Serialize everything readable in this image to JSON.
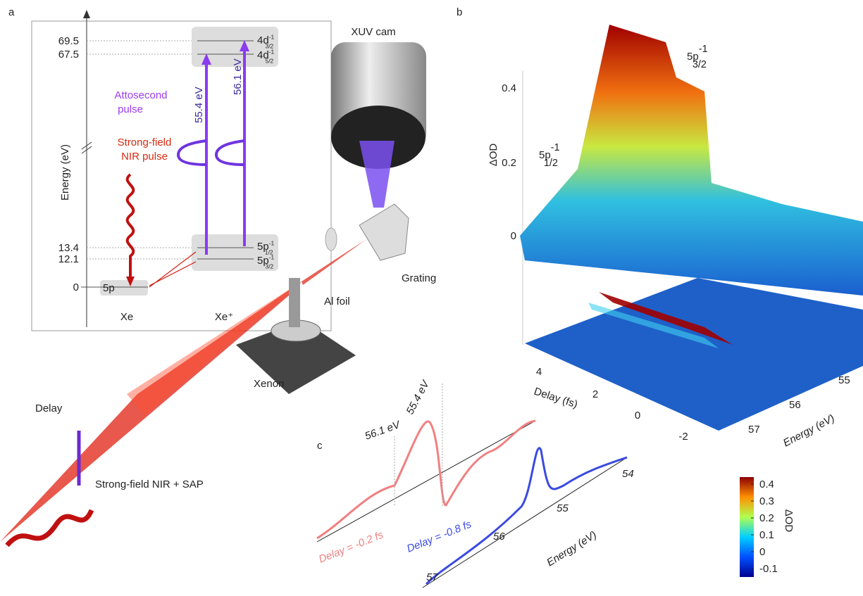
{
  "panel_a": {
    "label": "a",
    "axis_label": "Energy (eV)",
    "levels": [
      "69.5",
      "67.5",
      "13.4",
      "12.1",
      "0"
    ],
    "states": {
      "d32": {
        "base": "4d",
        "sup": "-1",
        "sub": "3/2"
      },
      "d52": {
        "base": "4d",
        "sup": "-1",
        "sub": "5/2"
      },
      "p12": {
        "base": "5p",
        "sup": "-1",
        "sub": "1/2"
      },
      "p32": {
        "base": "5p",
        "sup": "-1",
        "sub": "3/2"
      },
      "ground": "5p"
    },
    "species": [
      "Xe",
      "Xe⁺"
    ],
    "attosecond_label": [
      "Attosecond",
      "pulse"
    ],
    "nir_label": [
      "Strong-field",
      "NIR pulse"
    ],
    "transitions": [
      "55.4 eV",
      "56.1 eV"
    ]
  },
  "setup": {
    "camera": "XUV cam",
    "grating": "Grating",
    "foil": "Al foil",
    "target": "Xenon",
    "delay": "Delay",
    "beam": "Strong-field NIR + SAP"
  },
  "panel_b": {
    "label": "b",
    "z_label": "ΔOD",
    "z_ticks": [
      "0.4",
      "0.2",
      "0"
    ],
    "peak_high": {
      "base": "5p",
      "sup": "-1",
      "sub": "3/2"
    },
    "peak_low": {
      "base": "5p",
      "sup": "-1",
      "sub": "1/2"
    },
    "delay_label": "Delay (fs)",
    "delay_ticks": [
      "4",
      "2",
      "0",
      "-2"
    ],
    "energy_label": "Energy (eV)",
    "energy_ticks": [
      "55",
      "56",
      "57"
    ]
  },
  "panel_c": {
    "label": "c",
    "markers": [
      "56.1 eV",
      "55.4 eV"
    ],
    "traces": [
      "Delay  = -0.2 fs",
      "Delay = -0.8 fs"
    ],
    "energy_label": "Energy (eV)",
    "energy_ticks": [
      "54",
      "55",
      "56",
      "57"
    ]
  },
  "colorbar": {
    "label": "ΔOD",
    "ticks": [
      "0.4",
      "0.3",
      "0.2",
      "0.1",
      "0",
      "-0.1"
    ]
  }
}
